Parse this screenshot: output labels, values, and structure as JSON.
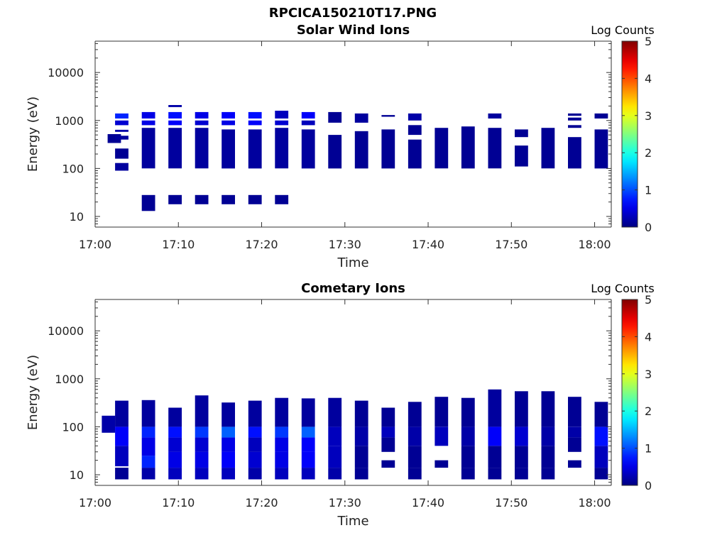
{
  "figure_title": "RPCICA150210T17.PNG",
  "colorbar": {
    "label": "Log Counts",
    "ticks": [
      "0",
      "1",
      "2",
      "3",
      "4",
      "5"
    ],
    "range": [
      0,
      5
    ]
  },
  "chart_data": [
    {
      "type": "heatmap",
      "title": "Solar Wind Ions",
      "xlabel": "Time",
      "ylabel": "Energy (eV)",
      "x_ticks": [
        "17:00",
        "17:10",
        "17:20",
        "17:30",
        "17:40",
        "17:50",
        "18:00"
      ],
      "y_ticks": [
        "10",
        "100",
        "1000",
        "10000"
      ],
      "y_scale": "log",
      "ylim": [
        6,
        45000
      ],
      "xlim_minutes": [
        0,
        62
      ],
      "columns": [
        {
          "t": 2.3,
          "bands": [
            [
              340,
              520,
              0.1
            ]
          ]
        },
        {
          "t": 3.2,
          "bands": [
            [
              90,
              130,
              0.15
            ],
            [
              160,
              260,
              0.1
            ],
            [
              400,
              480,
              0.15
            ],
            [
              580,
              640,
              0.2
            ],
            [
              800,
              1000,
              0.4
            ],
            [
              1100,
              1400,
              0.8
            ]
          ]
        },
        {
          "t": 6.4,
          "bands": [
            [
              13,
              28,
              0.1
            ],
            [
              100,
              700,
              0.15
            ],
            [
              800,
              1000,
              0.5
            ],
            [
              1100,
              1500,
              0.5
            ]
          ]
        },
        {
          "t": 9.6,
          "bands": [
            [
              18,
              28,
              0.1
            ],
            [
              100,
              700,
              0.15
            ],
            [
              800,
              1000,
              0.6
            ],
            [
              1100,
              1500,
              0.7
            ],
            [
              1900,
              2100,
              0.2
            ]
          ]
        },
        {
          "t": 12.8,
          "bands": [
            [
              18,
              28,
              0.1
            ],
            [
              100,
              700,
              0.15
            ],
            [
              800,
              1000,
              0.4
            ],
            [
              1100,
              1500,
              0.5
            ]
          ]
        },
        {
          "t": 16.0,
          "bands": [
            [
              18,
              28,
              0.1
            ],
            [
              100,
              650,
              0.15
            ],
            [
              800,
              1000,
              0.5
            ],
            [
              1100,
              1500,
              0.6
            ]
          ]
        },
        {
          "t": 19.2,
          "bands": [
            [
              18,
              28,
              0.1
            ],
            [
              100,
              650,
              0.15
            ],
            [
              800,
              1000,
              0.6
            ],
            [
              1100,
              1500,
              0.7
            ]
          ]
        },
        {
          "t": 22.4,
          "bands": [
            [
              18,
              28,
              0.1
            ],
            [
              100,
              700,
              0.15
            ],
            [
              800,
              1000,
              0.4
            ],
            [
              1100,
              1600,
              0.3
            ]
          ]
        },
        {
          "t": 25.6,
          "bands": [
            [
              100,
              650,
              0.15
            ],
            [
              800,
              1000,
              0.3
            ],
            [
              1100,
              1500,
              0.6
            ]
          ]
        },
        {
          "t": 28.8,
          "bands": [
            [
              100,
              500,
              0.1
            ],
            [
              900,
              1500,
              0.1
            ]
          ]
        },
        {
          "t": 32.0,
          "bands": [
            [
              100,
              600,
              0.1
            ],
            [
              900,
              1400,
              0.15
            ]
          ]
        },
        {
          "t": 35.2,
          "bands": [
            [
              100,
              650,
              0.1
            ],
            [
              1200,
              1300,
              0.1
            ]
          ]
        },
        {
          "t": 38.4,
          "bands": [
            [
              100,
              400,
              0.1
            ],
            [
              500,
              800,
              0.1
            ],
            [
              1000,
              1400,
              0.2
            ]
          ]
        },
        {
          "t": 41.6,
          "bands": [
            [
              100,
              700,
              0.1
            ]
          ]
        },
        {
          "t": 44.8,
          "bands": [
            [
              100,
              750,
              0.1
            ]
          ]
        },
        {
          "t": 48.0,
          "bands": [
            [
              100,
              700,
              0.1
            ],
            [
              1100,
              1400,
              0.15
            ]
          ]
        },
        {
          "t": 51.2,
          "bands": [
            [
              110,
              300,
              0.1
            ],
            [
              450,
              650,
              0.1
            ]
          ]
        },
        {
          "t": 54.4,
          "bands": [
            [
              100,
              700,
              0.1
            ]
          ]
        },
        {
          "t": 57.6,
          "bands": [
            [
              100,
              450,
              0.1
            ],
            [
              700,
              800,
              0.1
            ],
            [
              1000,
              1150,
              0.1
            ],
            [
              1250,
              1400,
              0.1
            ]
          ]
        },
        {
          "t": 60.8,
          "bands": [
            [
              100,
              650,
              0.1
            ],
            [
              1100,
              1400,
              0.1
            ]
          ]
        }
      ]
    },
    {
      "type": "heatmap",
      "title": "Cometary Ions",
      "xlabel": "Time",
      "ylabel": "Energy (eV)",
      "x_ticks": [
        "17:00",
        "17:10",
        "17:20",
        "17:30",
        "17:40",
        "17:50",
        "18:00"
      ],
      "y_ticks": [
        "10",
        "100",
        "1000",
        "10000"
      ],
      "y_scale": "log",
      "ylim": [
        6,
        45000
      ],
      "xlim_minutes": [
        0,
        62
      ],
      "columns": [
        {
          "t": 1.6,
          "bands": [
            [
              75,
              170,
              0.2
            ]
          ]
        },
        {
          "t": 3.2,
          "bands": [
            [
              8,
              14,
              0.1
            ],
            [
              15,
              40,
              0.3
            ],
            [
              40,
              100,
              0.6
            ],
            [
              100,
              350,
              0.15
            ]
          ]
        },
        {
          "t": 6.4,
          "bands": [
            [
              8,
              14,
              0.2
            ],
            [
              14,
              25,
              0.8
            ],
            [
              25,
              60,
              0.5
            ],
            [
              60,
              100,
              0.8
            ],
            [
              100,
              360,
              0.15
            ]
          ]
        },
        {
          "t": 9.6,
          "bands": [
            [
              8,
              14,
              0.3
            ],
            [
              14,
              30,
              0.5
            ],
            [
              30,
              60,
              0.4
            ],
            [
              60,
              100,
              0.7
            ],
            [
              100,
              250,
              0.15
            ]
          ]
        },
        {
          "t": 12.8,
          "bands": [
            [
              8,
              14,
              0.3
            ],
            [
              14,
              30,
              0.5
            ],
            [
              30,
              60,
              0.4
            ],
            [
              60,
              100,
              0.9
            ],
            [
              100,
              450,
              0.15
            ]
          ]
        },
        {
          "t": 16.0,
          "bands": [
            [
              8,
              14,
              0.3
            ],
            [
              14,
              30,
              0.6
            ],
            [
              30,
              60,
              0.5
            ],
            [
              60,
              100,
              1.1
            ],
            [
              100,
              320,
              0.15
            ]
          ]
        },
        {
          "t": 19.2,
          "bands": [
            [
              8,
              14,
              0.2
            ],
            [
              14,
              30,
              0.4
            ],
            [
              30,
              60,
              0.3
            ],
            [
              60,
              100,
              0.7
            ],
            [
              100,
              350,
              0.15
            ]
          ]
        },
        {
          "t": 22.4,
          "bands": [
            [
              8,
              14,
              0.3
            ],
            [
              14,
              30,
              0.5
            ],
            [
              30,
              60,
              0.5
            ],
            [
              60,
              100,
              0.9
            ],
            [
              100,
              400,
              0.15
            ]
          ]
        },
        {
          "t": 25.6,
          "bands": [
            [
              8,
              14,
              0.3
            ],
            [
              14,
              30,
              0.6
            ],
            [
              30,
              60,
              0.6
            ],
            [
              60,
              100,
              1.1
            ],
            [
              100,
              390,
              0.15
            ]
          ]
        },
        {
          "t": 28.8,
          "bands": [
            [
              8,
              14,
              0.2
            ],
            [
              14,
              40,
              0.3
            ],
            [
              40,
              100,
              0.3
            ],
            [
              100,
              400,
              0.15
            ]
          ]
        },
        {
          "t": 32.0,
          "bands": [
            [
              8,
              14,
              0.1
            ],
            [
              14,
              40,
              0.1
            ],
            [
              40,
              100,
              0.2
            ],
            [
              100,
              350,
              0.1
            ]
          ]
        },
        {
          "t": 35.2,
          "bands": [
            [
              14,
              20,
              0.1
            ],
            [
              30,
              60,
              0.1
            ],
            [
              60,
              100,
              0.3
            ],
            [
              100,
              250,
              0.1
            ]
          ]
        },
        {
          "t": 38.4,
          "bands": [
            [
              8,
              14,
              0.1
            ],
            [
              14,
              40,
              0.1
            ],
            [
              40,
              100,
              0.2
            ],
            [
              100,
              330,
              0.1
            ]
          ]
        },
        {
          "t": 41.6,
          "bands": [
            [
              14,
              20,
              0.1
            ],
            [
              40,
              100,
              0.3
            ],
            [
              100,
              420,
              0.1
            ]
          ]
        },
        {
          "t": 44.8,
          "bands": [
            [
              8,
              14,
              0.1
            ],
            [
              14,
              40,
              0.1
            ],
            [
              40,
              100,
              0.2
            ],
            [
              100,
              400,
              0.1
            ]
          ]
        },
        {
          "t": 48.0,
          "bands": [
            [
              8,
              14,
              0.1
            ],
            [
              14,
              40,
              0.1
            ],
            [
              40,
              100,
              0.6
            ],
            [
              100,
              600,
              0.15
            ]
          ]
        },
        {
          "t": 51.2,
          "bands": [
            [
              8,
              14,
              0.1
            ],
            [
              14,
              40,
              0.1
            ],
            [
              40,
              100,
              0.4
            ],
            [
              100,
              550,
              0.1
            ]
          ]
        },
        {
          "t": 54.4,
          "bands": [
            [
              8,
              14,
              0.1
            ],
            [
              14,
              40,
              0.1
            ],
            [
              40,
              100,
              0.2
            ],
            [
              100,
              550,
              0.1
            ]
          ]
        },
        {
          "t": 57.6,
          "bands": [
            [
              14,
              20,
              0.1
            ],
            [
              30,
              60,
              0.1
            ],
            [
              60,
              100,
              0.2
            ],
            [
              100,
              420,
              0.1
            ]
          ]
        },
        {
          "t": 60.8,
          "bands": [
            [
              8,
              14,
              0.1
            ],
            [
              14,
              40,
              0.3
            ],
            [
              40,
              100,
              0.7
            ],
            [
              100,
              330,
              0.1
            ]
          ]
        }
      ]
    }
  ]
}
